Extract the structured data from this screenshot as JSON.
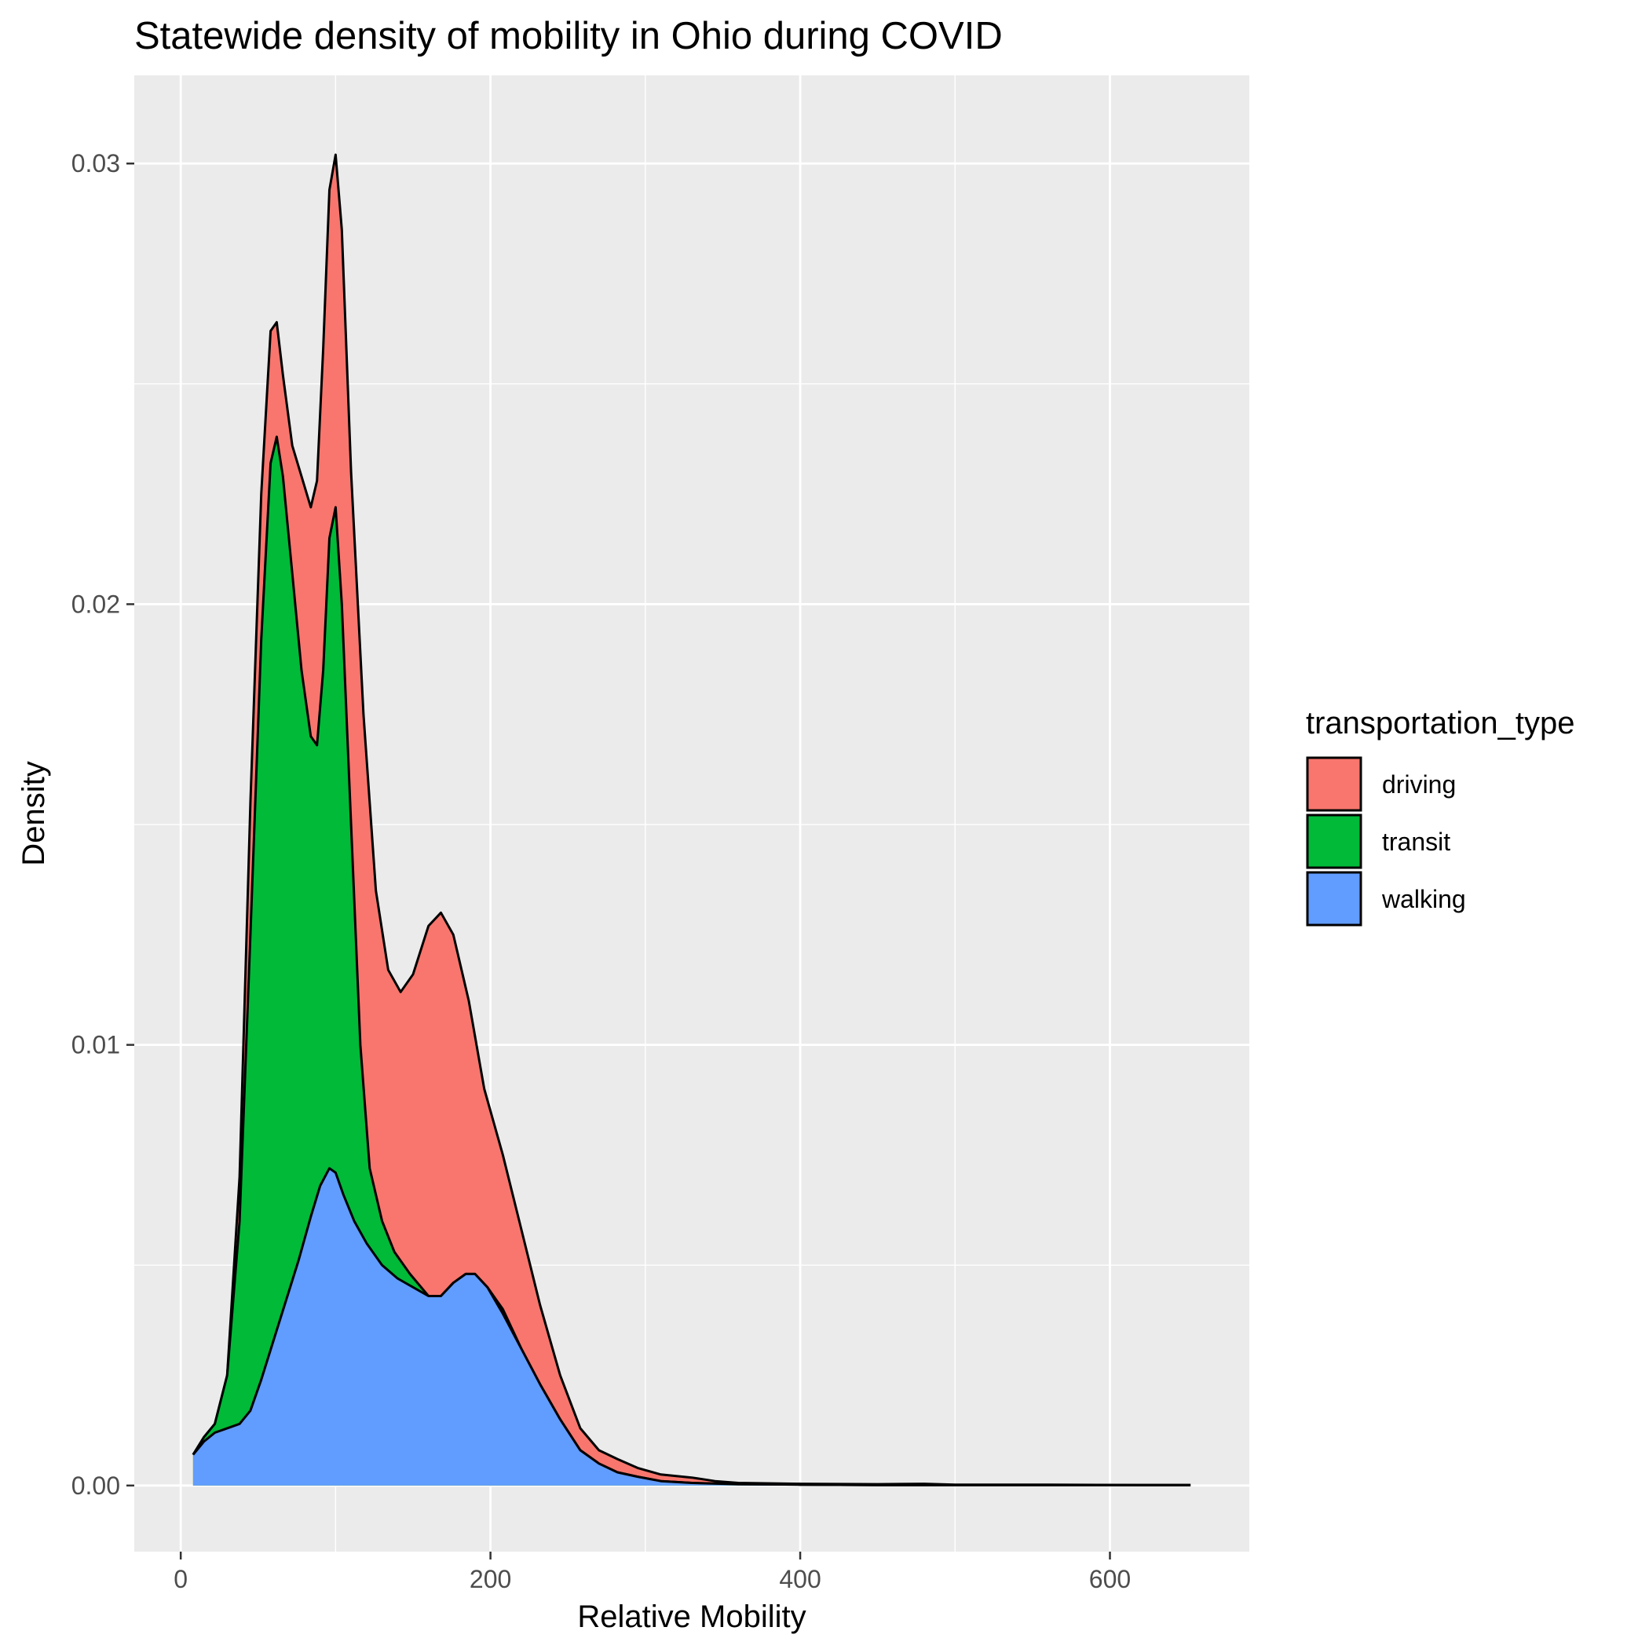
{
  "chart_data": {
    "type": "area",
    "stacked": true,
    "title": "Statewide density of mobility in Ohio during COVID",
    "xlabel": "Relative Mobility",
    "ylabel": "Density",
    "xlim": [
      -30,
      690
    ],
    "ylim": [
      -0.0015,
      0.032
    ],
    "x_ticks": [
      0,
      200,
      400,
      600
    ],
    "x_tick_labels": [
      "0",
      "200",
      "400",
      "600"
    ],
    "y_ticks": [
      0.0,
      0.01,
      0.02,
      0.03
    ],
    "y_tick_labels": [
      "0.00",
      "0.01",
      "0.02",
      "0.03"
    ],
    "x_minor_ticks": [
      100,
      300,
      500
    ],
    "y_minor_ticks": [
      0.005,
      0.015,
      0.025
    ],
    "grid": true,
    "legend": {
      "title": "transportation_type",
      "position": "right",
      "entries": [
        "driving",
        "transit",
        "walking"
      ]
    },
    "colors": {
      "panel_bg": "#EBEBEB",
      "grid": "#FFFFFF",
      "driving": "#F8766D",
      "transit": "#00BA38",
      "walking": "#619CFF",
      "outline": "#000000"
    },
    "stack_order_bottom_to_top": [
      "walking",
      "transit",
      "driving"
    ],
    "series": [
      {
        "name": "walking",
        "points": [
          [
            8,
            0.0007
          ],
          [
            15,
            0.001
          ],
          [
            22,
            0.0012
          ],
          [
            30,
            0.0013
          ],
          [
            38,
            0.0014
          ],
          [
            45,
            0.0017
          ],
          [
            52,
            0.0024
          ],
          [
            60,
            0.0033
          ],
          [
            68,
            0.0042
          ],
          [
            76,
            0.0051
          ],
          [
            84,
            0.0061
          ],
          [
            90,
            0.0068
          ],
          [
            96,
            0.0072
          ],
          [
            100,
            0.0071
          ],
          [
            105,
            0.0066
          ],
          [
            112,
            0.006
          ],
          [
            120,
            0.0055
          ],
          [
            130,
            0.005
          ],
          [
            140,
            0.0047
          ],
          [
            150,
            0.0045
          ],
          [
            160,
            0.0043
          ],
          [
            168,
            0.0043
          ],
          [
            176,
            0.0046
          ],
          [
            184,
            0.0048
          ],
          [
            190,
            0.0048
          ],
          [
            198,
            0.0045
          ],
          [
            208,
            0.0039
          ],
          [
            220,
            0.0031
          ],
          [
            232,
            0.0023
          ],
          [
            245,
            0.0015
          ],
          [
            258,
            0.0008
          ],
          [
            270,
            0.0005
          ],
          [
            282,
            0.0003
          ],
          [
            295,
            0.0002
          ],
          [
            310,
            0.0001
          ],
          [
            330,
            6e-05
          ],
          [
            360,
            3e-05
          ],
          [
            400,
            2e-05
          ],
          [
            450,
            1e-05
          ],
          [
            500,
            1e-05
          ],
          [
            560,
            1e-05
          ],
          [
            620,
            1e-05
          ],
          [
            652,
            1e-05
          ]
        ]
      },
      {
        "name": "transit",
        "points": [
          [
            8,
            0.0007
          ],
          [
            15,
            0.0011
          ],
          [
            22,
            0.0014
          ],
          [
            30,
            0.0025
          ],
          [
            38,
            0.006
          ],
          [
            45,
            0.0125
          ],
          [
            52,
            0.0192
          ],
          [
            58,
            0.0232
          ],
          [
            62,
            0.0238
          ],
          [
            66,
            0.0229
          ],
          [
            72,
            0.0207
          ],
          [
            78,
            0.0185
          ],
          [
            84,
            0.017
          ],
          [
            88,
            0.0168
          ],
          [
            92,
            0.0185
          ],
          [
            96,
            0.0215
          ],
          [
            100,
            0.0222
          ],
          [
            104,
            0.02
          ],
          [
            110,
            0.015
          ],
          [
            116,
            0.01
          ],
          [
            122,
            0.0072
          ],
          [
            130,
            0.006
          ],
          [
            138,
            0.0053
          ],
          [
            148,
            0.0048
          ],
          [
            160,
            0.0043
          ],
          [
            168,
            0.0043
          ],
          [
            176,
            0.0046
          ],
          [
            184,
            0.0048
          ],
          [
            190,
            0.0048
          ],
          [
            198,
            0.0045
          ],
          [
            208,
            0.004
          ],
          [
            220,
            0.0031
          ],
          [
            232,
            0.0023
          ],
          [
            245,
            0.0015
          ],
          [
            258,
            0.0008
          ],
          [
            270,
            0.0005
          ],
          [
            282,
            0.0003
          ],
          [
            295,
            0.0002
          ],
          [
            310,
            0.0001
          ],
          [
            330,
            6e-05
          ],
          [
            360,
            3e-05
          ],
          [
            400,
            2e-05
          ],
          [
            450,
            1e-05
          ],
          [
            500,
            1e-05
          ],
          [
            560,
            1e-05
          ],
          [
            620,
            1e-05
          ],
          [
            652,
            1e-05
          ]
        ]
      },
      {
        "name": "driving",
        "points": [
          [
            8,
            0.0007
          ],
          [
            15,
            0.0011
          ],
          [
            22,
            0.0014
          ],
          [
            30,
            0.0025
          ],
          [
            38,
            0.007
          ],
          [
            45,
            0.0155
          ],
          [
            52,
            0.0225
          ],
          [
            58,
            0.0262
          ],
          [
            62,
            0.0264
          ],
          [
            66,
            0.0252
          ],
          [
            72,
            0.0236
          ],
          [
            78,
            0.0229
          ],
          [
            84,
            0.0222
          ],
          [
            88,
            0.0228
          ],
          [
            92,
            0.0258
          ],
          [
            96,
            0.0294
          ],
          [
            100,
            0.0302
          ],
          [
            104,
            0.0285
          ],
          [
            110,
            0.023
          ],
          [
            118,
            0.0175
          ],
          [
            126,
            0.0135
          ],
          [
            134,
            0.0117
          ],
          [
            142,
            0.0112
          ],
          [
            150,
            0.0116
          ],
          [
            160,
            0.0127
          ],
          [
            168,
            0.013
          ],
          [
            176,
            0.0125
          ],
          [
            186,
            0.011
          ],
          [
            196,
            0.009
          ],
          [
            208,
            0.0075
          ],
          [
            220,
            0.0058
          ],
          [
            232,
            0.0041
          ],
          [
            245,
            0.0025
          ],
          [
            258,
            0.0013
          ],
          [
            270,
            0.0008
          ],
          [
            282,
            0.0006
          ],
          [
            295,
            0.0004
          ],
          [
            310,
            0.00025
          ],
          [
            330,
            0.00018
          ],
          [
            345,
            0.0001
          ],
          [
            360,
            6e-05
          ],
          [
            400,
            4e-05
          ],
          [
            450,
            3e-05
          ],
          [
            480,
            4e-05
          ],
          [
            500,
            2e-05
          ],
          [
            560,
            2e-05
          ],
          [
            620,
            1e-05
          ],
          [
            652,
            1e-05
          ]
        ]
      }
    ]
  }
}
